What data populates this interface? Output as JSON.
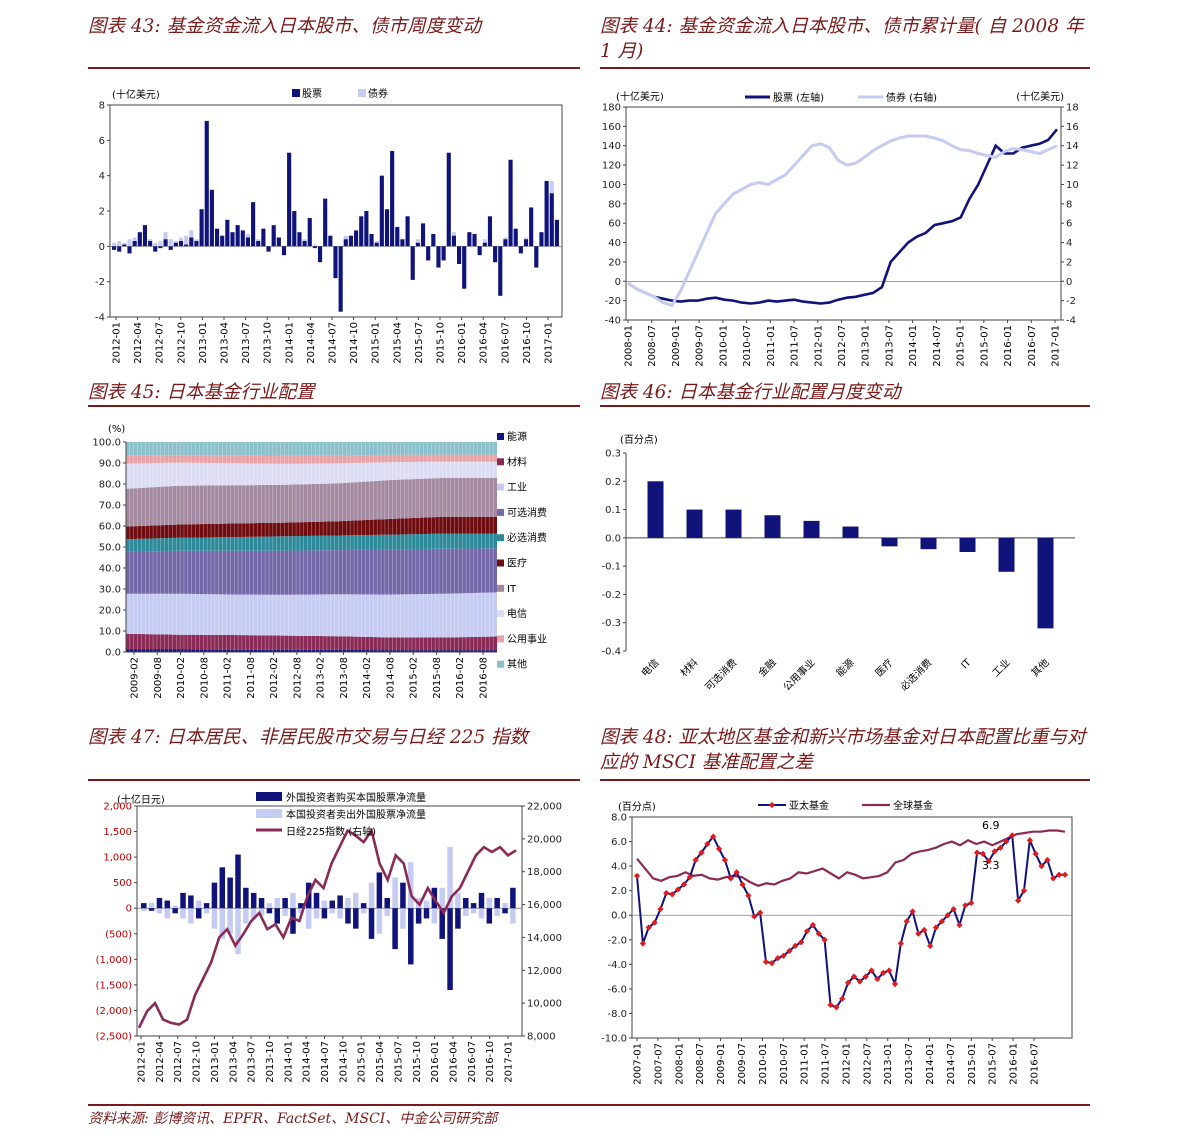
{
  "panels": [
    {
      "id": "p43",
      "title": "图表 43:  基金资金流入日本股市、债市周度变动"
    },
    {
      "id": "p44",
      "title": "图表 44:  基金资金流入日本股市、债市累计量( 自 2008 年1 月)"
    },
    {
      "id": "p45",
      "title": "图表 45:  日本基金行业配置"
    },
    {
      "id": "p46",
      "title": "图表 46:  日本基金行业配置月度变动"
    },
    {
      "id": "p47",
      "title": "图表 47:  日本居民、非居民股市交易与日经 225 指数"
    },
    {
      "id": "p48",
      "title": "图表 48:  亚太地区基金和新兴市场基金对日本配置比重与对应的 MSCI 基准配置之差"
    }
  ],
  "footer": "资料来源:  彭博资讯、EPFR、FactSet、MSCI、中金公司研究部",
  "colors": {
    "navy": "#10137a",
    "lavender": "#c6cbf2",
    "maroon": "#8a2a55",
    "red": "#e31a1c",
    "title": "#7a1a1a"
  },
  "chart_data": [
    {
      "id": "p43",
      "type": "bar",
      "ylabel": "(十亿美元)",
      "ylim": [
        -4,
        8
      ],
      "yticks": [
        "8",
        "6",
        "4",
        "2",
        "0",
        "-2",
        "-4"
      ],
      "xticks": [
        "2012-01",
        "2012-04",
        "2012-07",
        "2012-10",
        "2013-01",
        "2013-04",
        "2013-07",
        "2013-10",
        "2014-01",
        "2014-04",
        "2014-07",
        "2014-10",
        "2015-01",
        "2015-04",
        "2015-07",
        "2015-10",
        "2016-01",
        "2016-04",
        "2016-07",
        "2016-10",
        "2017-01"
      ],
      "series": [
        {
          "name": "股票",
          "color": "#10137a",
          "values": [
            -0.2,
            -0.3,
            0.1,
            -0.4,
            0.3,
            0.8,
            1.2,
            0.3,
            -0.3,
            -0.1,
            0.4,
            -0.2,
            0.2,
            0.3,
            0.1,
            0.5,
            0.3,
            2.1,
            7.1,
            3.2,
            1.0,
            0.6,
            1.5,
            0.8,
            1.2,
            0.9,
            0.5,
            2.5,
            0.3,
            1.0,
            -0.3,
            1.2,
            0.5,
            -0.5,
            5.3,
            2.0,
            0.8,
            0.3,
            1.6,
            -0.1,
            -0.9,
            2.7,
            0.6,
            -1.8,
            -3.7,
            0.4,
            0.6,
            0.9,
            1.7,
            2.0,
            0.7,
            0.2,
            4.0,
            2.1,
            5.4,
            1.1,
            0.4,
            1.7,
            -1.9,
            0.2,
            1.3,
            -0.8,
            0.7,
            -1.2,
            -0.8,
            5.3,
            0.6,
            -1.0,
            -2.4,
            0.8,
            0.7,
            -0.5,
            0.2,
            1.7,
            -0.9,
            -2.8,
            0.4,
            4.9,
            1.0,
            -0.4,
            0.4,
            2.2,
            -1.2,
            0.8,
            3.7,
            3.0,
            1.5
          ]
        },
        {
          "name": "债券",
          "color": "#c6cbf2",
          "values": [
            0.2,
            0.3,
            0.2,
            0.4,
            0.5,
            0.6,
            0.3,
            0.4,
            0.2,
            0.3,
            0.8,
            0.4,
            0.3,
            0.5,
            0.6,
            0.9,
            0.4,
            1.2,
            6.9,
            2.5,
            0.4,
            0.6,
            1.0,
            0.5,
            0.9,
            0.3,
            0.7,
            2.0,
            0.4,
            0.5,
            -0.2,
            1.1,
            0.5,
            -0.3,
            4.4,
            1.8,
            0.7,
            0.4,
            1.3,
            0.1,
            -0.5,
            2.1,
            0.3,
            -1.2,
            -2.8,
            0.6,
            0.5,
            0.7,
            1.1,
            1.6,
            0.6,
            0.3,
            3.6,
            1.9,
            4.9,
            0.9,
            0.3,
            1.4,
            -1.5,
            0.4,
            1.0,
            -0.6,
            0.6,
            -1.0,
            -0.5,
            4.8,
            0.8,
            -0.7,
            -2.2,
            0.6,
            0.5,
            -0.4,
            0.4,
            1.3,
            -0.6,
            -2.1,
            0.5,
            4.1,
            0.8,
            -0.3,
            0.5,
            1.8,
            -0.9,
            0.7,
            3.5,
            3.7,
            1.2
          ]
        }
      ]
    },
    {
      "id": "p44",
      "type": "line",
      "ylabel_left": "(十亿美元)",
      "ylabel_right": "(十亿美元)",
      "ylim_left": [
        -40,
        180
      ],
      "ylim_right": [
        -4,
        18
      ],
      "yticks_left": [
        "180",
        "160",
        "140",
        "120",
        "100",
        "80",
        "60",
        "40",
        "20",
        "0",
        "-20",
        "-40"
      ],
      "yticks_right": [
        "18",
        "16",
        "14",
        "12",
        "10",
        "8",
        "6",
        "4",
        "2",
        "0",
        "-2",
        "-4"
      ],
      "xticks": [
        "2008-01",
        "2008-07",
        "2009-01",
        "2009-07",
        "2010-01",
        "2010-07",
        "2011-01",
        "2011-07",
        "2012-01",
        "2012-07",
        "2013-01",
        "2013-07",
        "2014-01",
        "2014-07",
        "2015-01",
        "2015-07",
        "2016-01",
        "2016-07",
        "2017-01"
      ],
      "series": [
        {
          "name": "股票 (左轴)",
          "color": "#10137a",
          "axis": "left",
          "values": [
            -2,
            -8,
            -12,
            -16,
            -18,
            -20,
            -21,
            -20,
            -20,
            -18,
            -17,
            -19,
            -20,
            -22,
            -23,
            -22,
            -20,
            -21,
            -20,
            -19,
            -21,
            -22,
            -23,
            -22,
            -19,
            -17,
            -16,
            -14,
            -12,
            -6,
            20,
            30,
            40,
            46,
            50,
            58,
            60,
            62,
            66,
            85,
            100,
            120,
            140,
            132,
            132,
            138,
            140,
            142,
            146,
            157
          ]
        },
        {
          "name": "债券 (右轴)",
          "color": "#c6cbf2",
          "axis": "right",
          "values": [
            -0.2,
            -0.8,
            -1.2,
            -1.6,
            -2.2,
            -2.5,
            -1.0,
            1.0,
            3.0,
            5.0,
            7.0,
            8.0,
            9.0,
            9.5,
            10.0,
            10.2,
            10.0,
            10.5,
            11.0,
            12.0,
            13.0,
            14.0,
            14.2,
            13.8,
            12.5,
            12.0,
            12.2,
            12.8,
            13.5,
            14.0,
            14.5,
            14.8,
            15.0,
            15.0,
            15.0,
            14.8,
            14.5,
            14.0,
            13.6,
            13.5,
            13.2,
            13.0,
            12.8,
            13.4,
            13.7,
            13.6,
            13.4,
            13.2,
            13.6,
            14.0
          ]
        }
      ]
    },
    {
      "id": "p45",
      "type": "area",
      "ylabel": "(%)",
      "ylim": [
        0,
        100
      ],
      "yticks": [
        "100.0",
        "90.0",
        "80.0",
        "70.0",
        "60.0",
        "50.0",
        "40.0",
        "30.0",
        "20.0",
        "10.0",
        "0.0"
      ],
      "xticks": [
        "2009-02",
        "2009-08",
        "2010-02",
        "2010-08",
        "2011-02",
        "2011-08",
        "2012-02",
        "2012-08",
        "2013-02",
        "2013-08",
        "2014-02",
        "2014-08",
        "2015-02",
        "2015-08",
        "2016-02",
        "2016-08"
      ],
      "series": [
        {
          "name": "能源",
          "color": "#10137a",
          "values": [
            1.2,
            1.2,
            1.1,
            1.0,
            1.0,
            0.9,
            0.9,
            0.9
          ]
        },
        {
          "name": "材料",
          "color": "#8a2a55",
          "values": [
            7.5,
            7.0,
            7.0,
            6.8,
            6.5,
            6.0,
            6.0,
            6.5
          ]
        },
        {
          "name": "工业",
          "color": "#c6cbf2",
          "values": [
            19.0,
            19.5,
            19.3,
            19.5,
            20.0,
            20.5,
            20.8,
            21.0
          ]
        },
        {
          "name": "可选消费",
          "color": "#7468a8",
          "values": [
            20.0,
            20.5,
            20.8,
            21.0,
            21.0,
            21.5,
            21.5,
            21.0
          ]
        },
        {
          "name": "必选消费",
          "color": "#2d8a9a",
          "values": [
            6.0,
            6.2,
            6.5,
            6.8,
            7.0,
            7.0,
            7.2,
            7.0
          ]
        },
        {
          "name": "医疗",
          "color": "#6e0c10",
          "values": [
            6.0,
            6.3,
            6.5,
            6.5,
            6.8,
            7.5,
            8.0,
            8.0
          ]
        },
        {
          "name": "IT",
          "color": "#a48aa0",
          "values": [
            18.0,
            18.5,
            18.2,
            18.0,
            18.0,
            18.5,
            18.5,
            18.5
          ]
        },
        {
          "name": "电信",
          "color": "#dcdcf2",
          "values": [
            12.0,
            11.0,
            10.5,
            10.0,
            9.5,
            8.5,
            7.8,
            7.7
          ]
        },
        {
          "name": "公用事业",
          "color": "#e8a2a6",
          "values": [
            4.0,
            3.5,
            3.8,
            3.9,
            3.7,
            3.5,
            3.3,
            3.4
          ]
        },
        {
          "name": "其他",
          "color": "#8ac0cc",
          "values": [
            6.3,
            6.3,
            6.3,
            6.5,
            6.5,
            6.1,
            6.0,
            6.0
          ]
        }
      ]
    },
    {
      "id": "p46",
      "type": "bar",
      "ylabel": "(百分点)",
      "ylim": [
        -0.4,
        0.3
      ],
      "yticks": [
        "0.3",
        "0.2",
        "0.1",
        "0.0",
        "-0.1",
        "-0.2",
        "-0.3",
        "-0.4"
      ],
      "categories": [
        "电信",
        "材料",
        "可选消费",
        "金融",
        "公用事业",
        "能源",
        "医疗",
        "必选消费",
        "IT",
        "工业",
        "其他"
      ],
      "values": [
        0.2,
        0.1,
        0.1,
        0.08,
        0.06,
        0.04,
        -0.03,
        -0.04,
        -0.05,
        -0.12,
        -0.32
      ]
    },
    {
      "id": "p47",
      "type": "bar",
      "ylabel": "(十亿日元)",
      "ylim_left": [
        -2500,
        2000
      ],
      "ylim_right": [
        8000,
        22000
      ],
      "yticks_left": [
        "2,000",
        "1,500",
        "1,000",
        "500",
        "0",
        "(500)",
        "(1,000)",
        "(1,500)",
        "(2,000)",
        "(2,500)"
      ],
      "yticks_right": [
        "22,000",
        "20,000",
        "18,000",
        "16,000",
        "14,000",
        "12,000",
        "10,000",
        "8,000"
      ],
      "xticks": [
        "2012-01",
        "2012-04",
        "2012-07",
        "2012-10",
        "2013-01",
        "2013-04",
        "2013-07",
        "2013-10",
        "2014-01",
        "2014-04",
        "2014-07",
        "2014-10",
        "2015-01",
        "2015-04",
        "2015-07",
        "2015-10",
        "2016-01",
        "2016-04",
        "2016-07",
        "2016-10",
        "2017-01"
      ],
      "series": [
        {
          "name": "外国投资者购买本国股票净流量",
          "color": "#10137a",
          "values": [
            100,
            -50,
            200,
            150,
            -100,
            300,
            250,
            -200,
            100,
            500,
            800,
            600,
            1050,
            400,
            300,
            200,
            -100,
            -300,
            200,
            -500,
            100,
            500,
            300,
            -200,
            150,
            250,
            -300,
            -400,
            100,
            -600,
            700,
            200,
            -800,
            500,
            -1100,
            -300,
            -200,
            400,
            -600,
            -1600,
            -400,
            200,
            100,
            300,
            -300,
            200,
            -100,
            400
          ]
        },
        {
          "name": "本国投资者卖出外国股票净流量",
          "color": "#c6cbf2",
          "values": [
            -50,
            100,
            -100,
            -200,
            50,
            -200,
            -300,
            150,
            -100,
            -400,
            -600,
            -500,
            -900,
            -300,
            -200,
            -150,
            100,
            200,
            -150,
            300,
            -100,
            -400,
            -200,
            150,
            -100,
            -200,
            200,
            300,
            -100,
            500,
            -500,
            -150,
            600,
            -400,
            900,
            200,
            150,
            -300,
            400,
            1200,
            300,
            -150,
            -100,
            -200,
            200,
            -150,
            100,
            -300
          ]
        },
        {
          "name": "日经225指数 (右轴)",
          "color": "#8a2a55",
          "values": [
            8500,
            9500,
            10000,
            9000,
            8800,
            8700,
            9000,
            10500,
            11500,
            12500,
            14000,
            14500,
            13500,
            14200,
            15000,
            15500,
            14500,
            14800,
            14000,
            15200,
            15000,
            16500,
            17500,
            17000,
            18500,
            19500,
            20500,
            20200,
            19800,
            20500,
            18500,
            17500,
            19000,
            18500,
            16500,
            16000,
            17000,
            16200,
            15500,
            16500,
            17000,
            18000,
            19000,
            19500,
            19200,
            19500,
            19000,
            19300
          ]
        }
      ]
    },
    {
      "id": "p48",
      "type": "line",
      "ylabel": "(百分点)",
      "ylim": [
        -10,
        8
      ],
      "yticks": [
        "8.0",
        "6.0",
        "4.0",
        "2.0",
        "0.0",
        "-2.0",
        "-4.0",
        "-6.0",
        "-8.0",
        "-10.0"
      ],
      "xticks": [
        "2007-01",
        "2007-07",
        "2008-01",
        "2008-07",
        "2009-01",
        "2009-07",
        "2010-01",
        "2010-07",
        "2011-01",
        "2011-07",
        "2012-01",
        "2012-07",
        "2013-01",
        "2013-07",
        "2014-01",
        "2014-07",
        "2015-01",
        "2015-07",
        "2016-01",
        "2016-07"
      ],
      "annotations": [
        "6.9",
        "3.3"
      ],
      "series": [
        {
          "name": "亚太基金",
          "color": "#10137a",
          "marker_color": "#e31a1c",
          "values": [
            3.2,
            -2.3,
            -1.0,
            -0.6,
            0.5,
            1.8,
            1.7,
            2.1,
            2.5,
            3.1,
            4.5,
            5.1,
            5.8,
            6.4,
            5.4,
            4.5,
            3.0,
            3.5,
            2.5,
            1.6,
            -0.1,
            0.2,
            -3.8,
            -3.9,
            -3.5,
            -3.3,
            -2.9,
            -2.5,
            -2.2,
            -1.3,
            -0.8,
            -1.5,
            -2.0,
            -7.3,
            -7.5,
            -6.8,
            -5.5,
            -5.0,
            -5.4,
            -5.0,
            -4.5,
            -5.2,
            -4.7,
            -4.5,
            -5.6,
            -2.3,
            -0.5,
            0.3,
            -1.5,
            -1.2,
            -2.5,
            -1.0,
            -0.5,
            0.0,
            0.5,
            -0.8,
            0.8,
            1.0,
            5.1,
            5.0,
            4.4,
            5.2,
            5.5,
            6.0,
            6.5,
            1.2,
            2.0,
            6.1,
            5.0,
            4.0,
            4.5,
            3.0,
            3.3,
            3.3
          ]
        },
        {
          "name": "全球基金",
          "color": "#8a2a55",
          "values": [
            4.6,
            3.8,
            3.0,
            2.8,
            3.1,
            3.2,
            3.5,
            3.2,
            3.3,
            3.0,
            2.9,
            3.1,
            3.2,
            3.1,
            2.7,
            2.4,
            2.6,
            2.5,
            2.8,
            3.0,
            3.5,
            3.4,
            3.6,
            3.8,
            3.4,
            3.0,
            3.5,
            3.3,
            3.0,
            3.1,
            3.2,
            3.5,
            4.3,
            4.5,
            5.0,
            5.2,
            5.3,
            5.5,
            5.8,
            6.0,
            5.7,
            6.1,
            5.8,
            6.0,
            5.7,
            6.0,
            6.3,
            6.6,
            6.7,
            6.8,
            6.8,
            6.9,
            6.9,
            6.8
          ]
        }
      ]
    }
  ]
}
